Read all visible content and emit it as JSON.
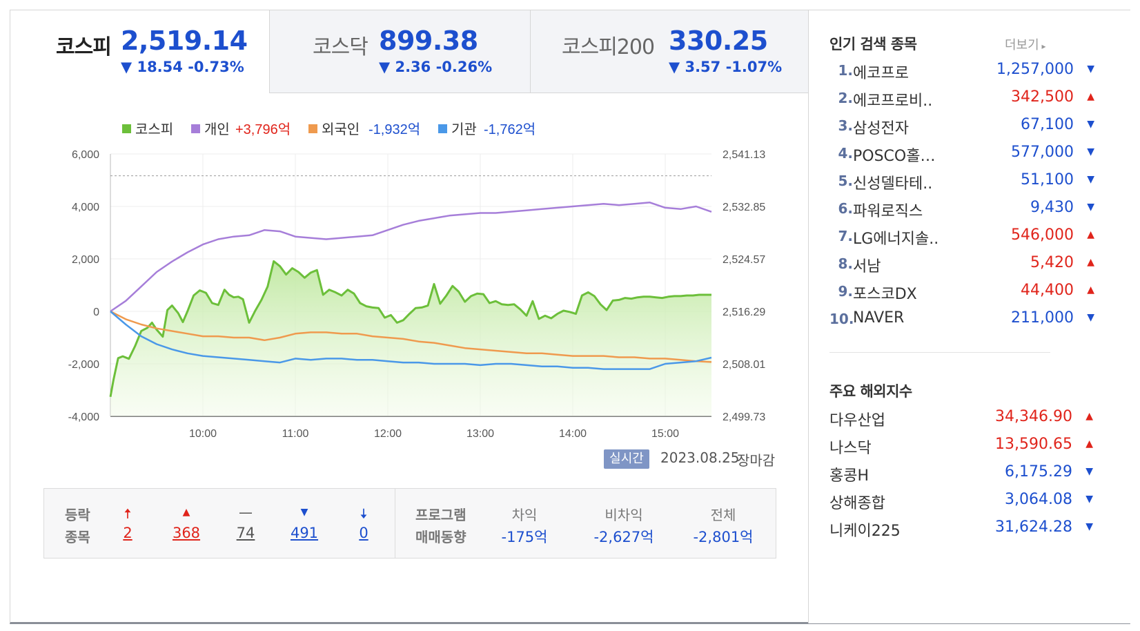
{
  "tabs": [
    {
      "name": "코스피",
      "value": "2,519.14",
      "change": "▼ 18.54 -0.73%"
    },
    {
      "name": "코스닥",
      "value": "899.38",
      "change": "▼ 2.36 -0.26%"
    },
    {
      "name": "코스피200",
      "value": "330.25",
      "change": "▼ 3.57 -1.07%"
    }
  ],
  "legend": {
    "kospi": "코스피",
    "individual_label": "개인",
    "individual_value": "+3,796억",
    "foreign_label": "외국인",
    "foreign_value": "-1,932억",
    "inst_label": "기관",
    "inst_value": "-1,762억"
  },
  "colors": {
    "kospi": "#6cbf3a",
    "individual": "#a67ed9",
    "foreign": "#ef9a4e",
    "institution": "#4a98e8",
    "up": "#e0241b",
    "down": "#1d4fce"
  },
  "status": {
    "badge": "실시간",
    "date": "2023.08.25",
    "closed": "장마감"
  },
  "summary": {
    "updown_label_1": "등락",
    "updown_label_2": "종목",
    "upper_limit_symbol": "🠅",
    "rise_symbol": "▲",
    "flat_symbol": "—",
    "fall_symbol": "▼",
    "lower_limit_symbol": "🠇",
    "upper_limit": "2",
    "rise": "368",
    "flat": "74",
    "fall": "491",
    "lower_limit": "0",
    "program_label_1": "프로그램",
    "program_label_2": "매매동향",
    "arb_label": "차익",
    "arb_value": "-175억",
    "nonarb_label": "비차익",
    "nonarb_value": "-2,627억",
    "total_label": "전체",
    "total_value": "-2,801억"
  },
  "popular": {
    "title": "인기 검색 종목",
    "more": "더보기",
    "items": [
      {
        "rank": "1.",
        "name": "에코프로",
        "price": "1,257,000",
        "dir": "down"
      },
      {
        "rank": "2.",
        "name": "에코프로비..",
        "price": "342,500",
        "dir": "up"
      },
      {
        "rank": "3.",
        "name": "삼성전자",
        "price": "67,100",
        "dir": "down"
      },
      {
        "rank": "4.",
        "name": "POSCO홀…",
        "price": "577,000",
        "dir": "down"
      },
      {
        "rank": "5.",
        "name": "신성델타테..",
        "price": "51,100",
        "dir": "down"
      },
      {
        "rank": "6.",
        "name": "파워로직스",
        "price": "9,430",
        "dir": "down"
      },
      {
        "rank": "7.",
        "name": "LG에너지솔..",
        "price": "546,000",
        "dir": "up"
      },
      {
        "rank": "8.",
        "name": "서남",
        "price": "5,420",
        "dir": "up"
      },
      {
        "rank": "9.",
        "name": "포스코DX",
        "price": "44,400",
        "dir": "up"
      },
      {
        "rank": "10.",
        "name": "NAVER",
        "price": "211,000",
        "dir": "down"
      }
    ]
  },
  "overseas": {
    "title": "주요 해외지수",
    "items": [
      {
        "name": "다우산업",
        "value": "34,346.90",
        "dir": "up"
      },
      {
        "name": "나스닥",
        "value": "13,590.65",
        "dir": "up"
      },
      {
        "name": "홍콩H",
        "value": "6,175.29",
        "dir": "down"
      },
      {
        "name": "상해종합",
        "value": "3,064.08",
        "dir": "down"
      },
      {
        "name": "니케이225",
        "value": "31,624.28",
        "dir": "down"
      }
    ]
  },
  "chart_data": {
    "type": "line",
    "title": "",
    "x_ticks": [
      "10:00",
      "11:00",
      "12:00",
      "13:00",
      "14:00",
      "15:00"
    ],
    "y_left_ticks": [
      "6,000",
      "4,000",
      "2,000",
      "0",
      "-2,000",
      "-4,000"
    ],
    "y_right_ticks": [
      "2,541.13",
      "2,532.85",
      "2,524.57",
      "2,516.29",
      "2,508.01",
      "2,499.73"
    ],
    "ylim_left": [
      -4000,
      6000
    ],
    "ylim_right": [
      2499.73,
      2541.13
    ],
    "x_range": [
      "09:00",
      "15:30"
    ],
    "prev_close_right": 2537.68,
    "series": [
      {
        "name": "코스피",
        "axis": "right",
        "style": "area",
        "x": [
          0,
          2,
          5,
          8,
          12,
          16,
          20,
          24,
          27,
          30,
          34,
          37,
          40,
          44,
          47,
          50,
          54,
          58,
          62,
          66,
          70,
          74,
          77,
          80,
          83,
          86,
          90,
          94,
          98,
          102,
          106,
          110,
          114,
          118,
          122,
          126,
          130,
          134,
          138,
          142,
          146,
          150,
          154,
          158,
          162,
          166,
          170,
          174,
          178,
          182,
          186,
          190,
          194,
          198,
          202,
          206,
          210,
          214,
          218,
          222,
          226,
          230,
          234,
          238,
          242,
          246,
          250,
          254,
          258,
          262,
          266,
          270,
          274,
          278,
          282,
          286,
          290,
          294,
          298,
          302,
          306,
          310,
          314,
          318,
          322,
          326,
          330,
          334,
          338,
          342,
          346,
          350,
          354,
          358,
          362,
          366,
          370,
          374,
          378,
          382,
          386,
          390
        ],
        "values": [
          2502.8,
          2505.5,
          2508.9,
          2509.2,
          2508.8,
          2510.8,
          2513.2,
          2513.7,
          2514.5,
          2513.4,
          2512.3,
          2516.5,
          2517.2,
          2516.0,
          2514.6,
          2516.3,
          2518.8,
          2519.6,
          2519.2,
          2517.6,
          2517.3,
          2519.7,
          2518.9,
          2518.5,
          2518.6,
          2518.2,
          2514.5,
          2516.4,
          2518.1,
          2520.2,
          2524.2,
          2523.4,
          2522.1,
          2523.1,
          2522.5,
          2521.6,
          2522.4,
          2522.8,
          2518.9,
          2519.7,
          2519.3,
          2518.8,
          2519.7,
          2519.1,
          2517.6,
          2517.1,
          2516.9,
          2516.8,
          2515.3,
          2515.7,
          2514.5,
          2514.9,
          2515.9,
          2516.8,
          2516.9,
          2517.2,
          2520.6,
          2517.5,
          2518.8,
          2520.3,
          2519.4,
          2517.8,
          2518.7,
          2519.1,
          2519.0,
          2517.6,
          2517.9,
          2517.4,
          2517.3,
          2517.4,
          2516.6,
          2515.6,
          2517.9,
          2515.1,
          2515.6,
          2515.2,
          2515.9,
          2516.4,
          2516.2,
          2515.9,
          2518.8,
          2519.3,
          2518.7,
          2517.4,
          2516.5,
          2518.0,
          2518.1,
          2518.4,
          2518.3,
          2518.5,
          2518.6,
          2518.6,
          2518.5,
          2518.4,
          2518.6,
          2518.7,
          2518.7,
          2518.8,
          2518.8,
          2518.9,
          2518.9,
          2518.9
        ]
      },
      {
        "name": "개인",
        "axis": "left",
        "x": [
          0,
          10,
          20,
          30,
          40,
          50,
          60,
          70,
          80,
          90,
          100,
          110,
          120,
          130,
          140,
          150,
          160,
          170,
          180,
          190,
          200,
          210,
          220,
          230,
          240,
          250,
          260,
          270,
          280,
          290,
          300,
          310,
          320,
          330,
          340,
          350,
          360,
          370,
          380,
          390
        ],
        "values": [
          0,
          400,
          950,
          1500,
          1900,
          2250,
          2550,
          2750,
          2850,
          2900,
          3100,
          3050,
          2850,
          2800,
          2750,
          2800,
          2850,
          2900,
          3100,
          3300,
          3450,
          3550,
          3650,
          3700,
          3750,
          3750,
          3800,
          3850,
          3900,
          3950,
          4000,
          4050,
          4100,
          4050,
          4100,
          4150,
          3950,
          3900,
          4000,
          3796
        ]
      },
      {
        "name": "외국인",
        "axis": "left",
        "x": [
          0,
          10,
          20,
          30,
          40,
          50,
          60,
          70,
          80,
          90,
          100,
          110,
          120,
          130,
          140,
          150,
          160,
          170,
          180,
          190,
          200,
          210,
          220,
          230,
          240,
          250,
          260,
          270,
          280,
          290,
          300,
          310,
          320,
          330,
          340,
          350,
          360,
          370,
          380,
          390
        ],
        "values": [
          0,
          -300,
          -500,
          -650,
          -750,
          -850,
          -950,
          -950,
          -1000,
          -1000,
          -1100,
          -1000,
          -850,
          -800,
          -800,
          -850,
          -850,
          -950,
          -1000,
          -1050,
          -1150,
          -1200,
          -1300,
          -1400,
          -1450,
          -1500,
          -1550,
          -1600,
          -1600,
          -1650,
          -1700,
          -1700,
          -1700,
          -1750,
          -1750,
          -1800,
          -1800,
          -1850,
          -1900,
          -1932
        ]
      },
      {
        "name": "기관",
        "axis": "left",
        "x": [
          0,
          10,
          20,
          30,
          40,
          50,
          60,
          70,
          80,
          90,
          100,
          110,
          120,
          130,
          140,
          150,
          160,
          170,
          180,
          190,
          200,
          210,
          220,
          230,
          240,
          250,
          260,
          270,
          280,
          290,
          300,
          310,
          320,
          330,
          340,
          350,
          360,
          370,
          380,
          390
        ],
        "values": [
          0,
          -500,
          -950,
          -1250,
          -1450,
          -1600,
          -1700,
          -1750,
          -1800,
          -1850,
          -1900,
          -1950,
          -1800,
          -1850,
          -1800,
          -1800,
          -1850,
          -1850,
          -1900,
          -1950,
          -1950,
          -2000,
          -2000,
          -2000,
          -2050,
          -2000,
          -2000,
          -2050,
          -2100,
          -2100,
          -2150,
          -2150,
          -2200,
          -2200,
          -2200,
          -2200,
          -2000,
          -1950,
          -1900,
          -1762
        ]
      }
    ]
  }
}
